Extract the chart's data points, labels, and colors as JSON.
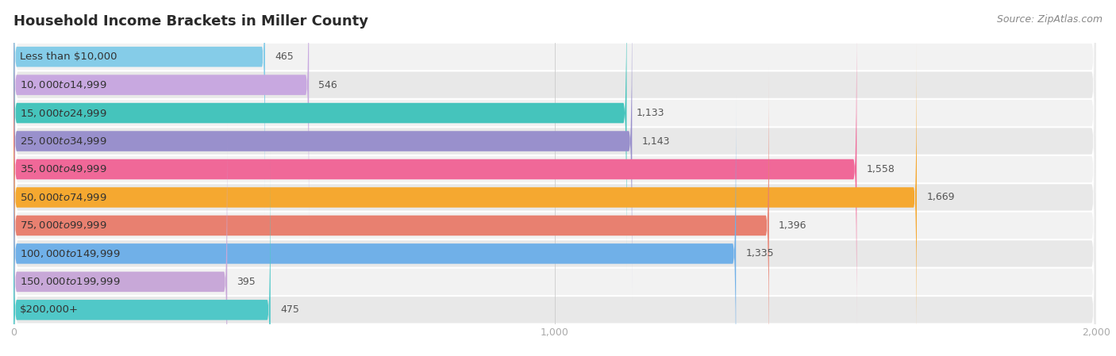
{
  "title": "Household Income Brackets in Miller County",
  "source": "Source: ZipAtlas.com",
  "categories": [
    "Less than $10,000",
    "$10,000 to $14,999",
    "$15,000 to $24,999",
    "$25,000 to $34,999",
    "$35,000 to $49,999",
    "$50,000 to $74,999",
    "$75,000 to $99,999",
    "$100,000 to $149,999",
    "$150,000 to $199,999",
    "$200,000+"
  ],
  "values": [
    465,
    546,
    1133,
    1143,
    1558,
    1669,
    1396,
    1335,
    395,
    475
  ],
  "bar_colors": [
    "#85cce8",
    "#c8a8e0",
    "#45c4bc",
    "#9990cc",
    "#f06898",
    "#f5a830",
    "#e88070",
    "#70b0e8",
    "#c8a8d8",
    "#50c8c8"
  ],
  "background_color": "#ffffff",
  "row_bg_even": "#f2f2f2",
  "row_bg_odd": "#e8e8e8",
  "xlim": [
    0,
    2000
  ],
  "xticks": [
    0,
    1000,
    2000
  ],
  "xtick_labels": [
    "0",
    "1,000",
    "2,000"
  ],
  "title_fontsize": 13,
  "label_fontsize": 9.5,
  "value_fontsize": 9,
  "source_fontsize": 9,
  "title_color": "#2a2a2a",
  "label_color": "#333333",
  "value_color_dark": "#555555",
  "value_color_light": "#ffffff",
  "value_threshold": 800
}
